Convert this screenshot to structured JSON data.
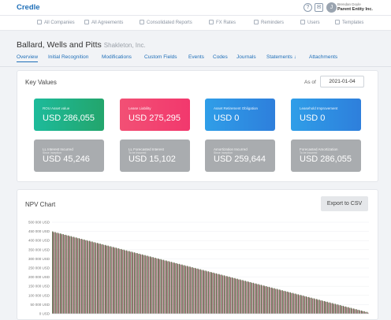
{
  "app": {
    "logo": "Credle",
    "user_name": "Brendan Doyle",
    "user_entity": "Parent Entity Inc.",
    "avatar_initial": "J"
  },
  "nav": [
    {
      "label": "All Companies",
      "icon": "building-icon"
    },
    {
      "label": "All Agreements",
      "icon": "document-icon"
    },
    {
      "label": "Consolidated Reports",
      "icon": "report-icon"
    },
    {
      "label": "FX Rates",
      "icon": "currency-icon"
    },
    {
      "label": "Reminders",
      "icon": "bell-icon"
    },
    {
      "label": "Users",
      "icon": "user-icon"
    },
    {
      "label": "Templates",
      "icon": "template-icon"
    }
  ],
  "header": {
    "company": "Ballard, Wells and Pitts",
    "subtitle": "Shakleton, Inc."
  },
  "tabs": [
    {
      "label": "Overview",
      "active": true
    },
    {
      "label": "Initial Recognition",
      "active": false
    },
    {
      "label": "Modifications",
      "active": false
    },
    {
      "label": "Custom Fields",
      "active": false
    },
    {
      "label": "Events",
      "active": false
    },
    {
      "label": "Codes",
      "active": false
    },
    {
      "label": "Journals",
      "active": false
    },
    {
      "label": "Statements ↓",
      "active": false
    },
    {
      "label": "Attachments",
      "active": false
    }
  ],
  "key_values": {
    "title": "Key Values",
    "as_of_label": "As of",
    "as_of_date": "2021-01-04",
    "cards": [
      {
        "label": "ROU Asset value",
        "sublabel": "",
        "value": "USD 286,055",
        "style": "green"
      },
      {
        "label": "Lease Liability",
        "sublabel": "",
        "value": "USD 275,295",
        "style": "pink"
      },
      {
        "label": "Asset Retirement Obligation",
        "sublabel": "",
        "value": "USD 0",
        "style": "blue"
      },
      {
        "label": "Leasehold Improvement",
        "sublabel": "",
        "value": "USD 0",
        "style": "blue"
      },
      {
        "label": "LL Interest Incurred",
        "sublabel": "Since Inception",
        "value": "USD 45,246",
        "style": "gray"
      },
      {
        "label": "LL Forecasted Interest",
        "sublabel": "To be Incurred",
        "value": "USD 15,102",
        "style": "gray"
      },
      {
        "label": "Amortization Incurred",
        "sublabel": "Since Inception",
        "value": "USD 259,644",
        "style": "gray"
      },
      {
        "label": "Forecasted Amortization",
        "sublabel": "To be Incurred",
        "value": "USD 286,055",
        "style": "gray"
      }
    ]
  },
  "npv": {
    "title": "NPV Chart",
    "export_label": "Export to CSV"
  },
  "chart_data": {
    "type": "bar",
    "title": "NPV Chart",
    "ylim": [
      0,
      500000
    ],
    "yticks": [
      "0 USD",
      "50 000 USD",
      "100 000 USD",
      "150 000 USD",
      "200 000 USD",
      "250 000 USD",
      "300 000 USD",
      "350 000 USD",
      "400 000 USD",
      "450 000 USD",
      "500 000 USD"
    ],
    "start_value": 450000,
    "end_value": 10000,
    "bar_count": 120,
    "color_primary": "#6b7a5a",
    "color_secondary": "#a5707a"
  }
}
